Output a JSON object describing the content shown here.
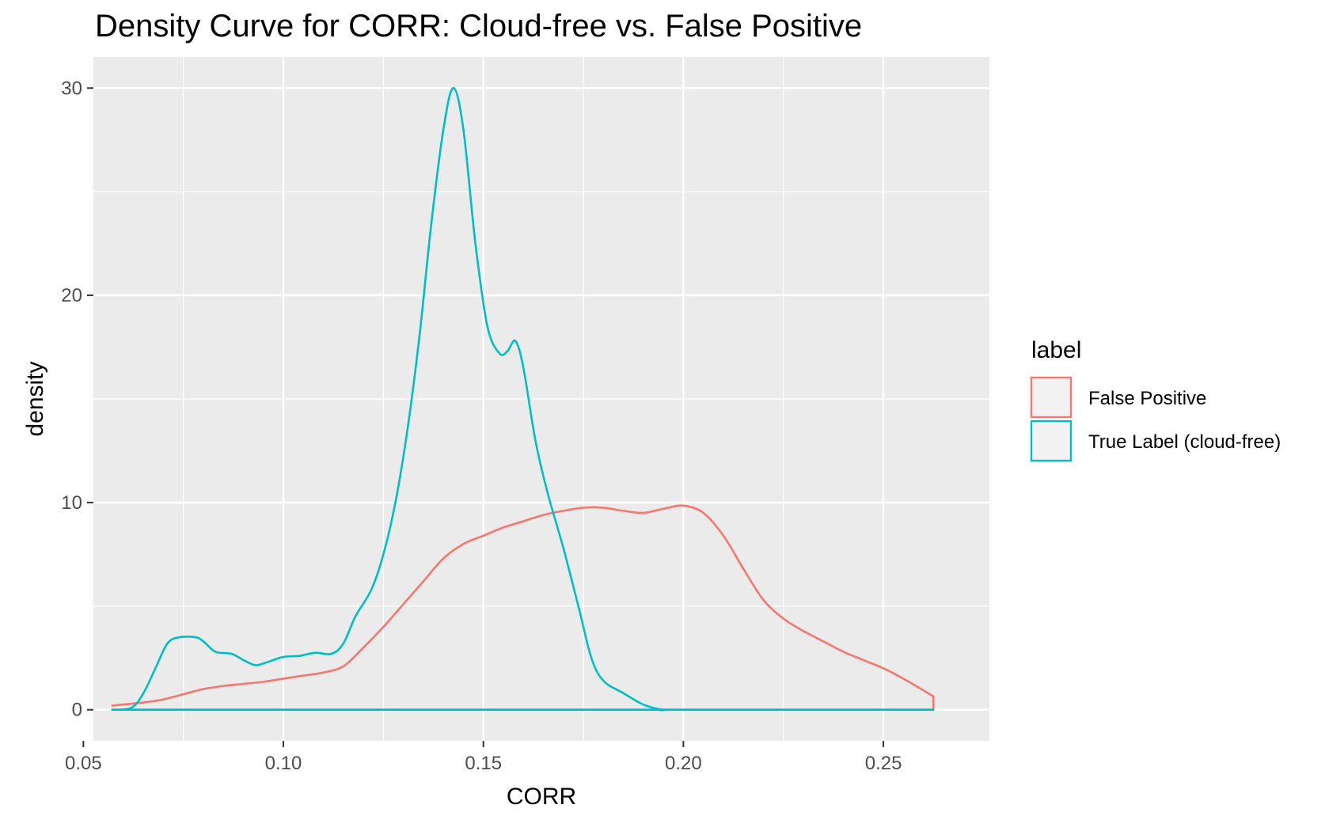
{
  "chart_data": {
    "type": "line",
    "title": "Density Curve for CORR: Cloud-free vs. False Positive",
    "xlabel": "CORR",
    "ylabel": "density",
    "xlim": [
      0.0525,
      0.2765
    ],
    "ylim": [
      -1.5,
      31.5
    ],
    "x_ticks": [
      0.05,
      0.1,
      0.15,
      0.2,
      0.25
    ],
    "x_tick_labels": [
      "0.05",
      "0.10",
      "0.15",
      "0.20",
      "0.25"
    ],
    "y_ticks": [
      0,
      10,
      20,
      30
    ],
    "y_tick_labels": [
      "0",
      "10",
      "20",
      "30"
    ],
    "grid": true,
    "legend": {
      "title": "label",
      "placement": "right",
      "entries": [
        "False Positive",
        "True Label (cloud-free)"
      ]
    },
    "series": [
      {
        "name": "False Positive",
        "color": "#f8766d",
        "points": [
          [
            0.057,
            0.2
          ],
          [
            0.065,
            0.35
          ],
          [
            0.07,
            0.5
          ],
          [
            0.075,
            0.75
          ],
          [
            0.08,
            1.0
          ],
          [
            0.085,
            1.15
          ],
          [
            0.09,
            1.25
          ],
          [
            0.095,
            1.35
          ],
          [
            0.1,
            1.5
          ],
          [
            0.105,
            1.65
          ],
          [
            0.11,
            1.8
          ],
          [
            0.115,
            2.1
          ],
          [
            0.12,
            3.0
          ],
          [
            0.125,
            4.0
          ],
          [
            0.13,
            5.1
          ],
          [
            0.135,
            6.2
          ],
          [
            0.14,
            7.3
          ],
          [
            0.145,
            8.0
          ],
          [
            0.15,
            8.4
          ],
          [
            0.155,
            8.8
          ],
          [
            0.16,
            9.1
          ],
          [
            0.165,
            9.4
          ],
          [
            0.17,
            9.6
          ],
          [
            0.175,
            9.75
          ],
          [
            0.18,
            9.75
          ],
          [
            0.185,
            9.6
          ],
          [
            0.19,
            9.5
          ],
          [
            0.195,
            9.7
          ],
          [
            0.2,
            9.85
          ],
          [
            0.205,
            9.5
          ],
          [
            0.21,
            8.4
          ],
          [
            0.215,
            6.8
          ],
          [
            0.22,
            5.3
          ],
          [
            0.225,
            4.4
          ],
          [
            0.23,
            3.8
          ],
          [
            0.235,
            3.3
          ],
          [
            0.24,
            2.8
          ],
          [
            0.245,
            2.4
          ],
          [
            0.25,
            2.0
          ],
          [
            0.255,
            1.5
          ],
          [
            0.2625,
            0.65
          ],
          [
            0.2625,
            0.0
          ],
          [
            0.057,
            0.0
          ]
        ]
      },
      {
        "name": "True Label (cloud-free)",
        "color": "#00bfc4",
        "points": [
          [
            0.057,
            0.0
          ],
          [
            0.062,
            0.1
          ],
          [
            0.065,
            0.8
          ],
          [
            0.068,
            2.0
          ],
          [
            0.071,
            3.2
          ],
          [
            0.074,
            3.5
          ],
          [
            0.078,
            3.5
          ],
          [
            0.08,
            3.3
          ],
          [
            0.083,
            2.8
          ],
          [
            0.087,
            2.7
          ],
          [
            0.09,
            2.4
          ],
          [
            0.093,
            2.15
          ],
          [
            0.096,
            2.3
          ],
          [
            0.1,
            2.55
          ],
          [
            0.104,
            2.6
          ],
          [
            0.108,
            2.75
          ],
          [
            0.112,
            2.7
          ],
          [
            0.115,
            3.2
          ],
          [
            0.118,
            4.5
          ],
          [
            0.122,
            5.8
          ],
          [
            0.125,
            7.5
          ],
          [
            0.128,
            10.0
          ],
          [
            0.131,
            13.5
          ],
          [
            0.134,
            18.0
          ],
          [
            0.137,
            23.5
          ],
          [
            0.14,
            28.0
          ],
          [
            0.1425,
            30.0
          ],
          [
            0.145,
            28.0
          ],
          [
            0.148,
            22.5
          ],
          [
            0.151,
            18.5
          ],
          [
            0.154,
            17.2
          ],
          [
            0.156,
            17.3
          ],
          [
            0.158,
            17.8
          ],
          [
            0.16,
            16.5
          ],
          [
            0.163,
            13.0
          ],
          [
            0.166,
            10.5
          ],
          [
            0.17,
            7.8
          ],
          [
            0.174,
            4.8
          ],
          [
            0.177,
            2.5
          ],
          [
            0.18,
            1.4
          ],
          [
            0.185,
            0.8
          ],
          [
            0.19,
            0.25
          ],
          [
            0.195,
            0.0
          ],
          [
            0.2,
            0.0
          ],
          [
            0.258,
            0.0
          ],
          [
            0.2625,
            0.0
          ],
          [
            0.057,
            0.0
          ]
        ]
      }
    ]
  }
}
